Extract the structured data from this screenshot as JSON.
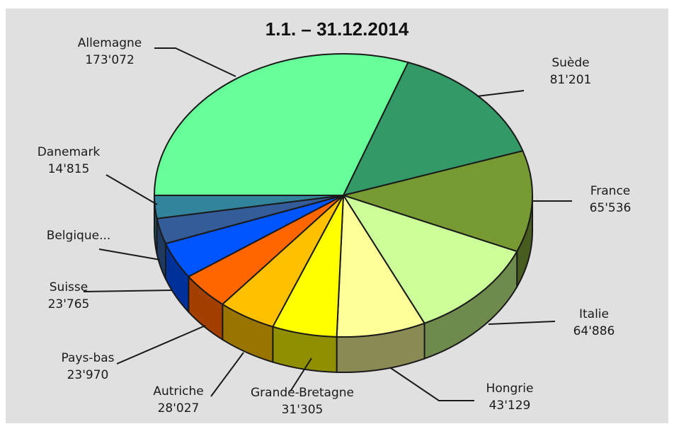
{
  "chart_data": {
    "type": "pie",
    "title": "1.1. – 31.12.2014",
    "slices": [
      {
        "label": "Allemagne",
        "value_label": "173'072",
        "value": 173072,
        "color": "#66ff99",
        "side": "#3f9c5e"
      },
      {
        "label": "Suède",
        "value_label": "81'201",
        "value": 81201,
        "color": "#339966",
        "side": "#1f5c3d"
      },
      {
        "label": "France",
        "value_label": "65'536",
        "value": 65536,
        "color": "#779a33",
        "side": "#475c1f"
      },
      {
        "label": "Italie",
        "value_label": "64'886",
        "value": 64886,
        "color": "#ccff99",
        "side": "#6e8a4d"
      },
      {
        "label": "Hongrie",
        "value_label": "43'129",
        "value": 43129,
        "color": "#ffff99",
        "side": "#8a8a55"
      },
      {
        "label": "Grande-Bretagne",
        "value_label": "31'305",
        "value": 31305,
        "color": "#ffff00",
        "side": "#8f8f00"
      },
      {
        "label": "Autriche",
        "value_label": "28'027",
        "value": 28027,
        "color": "#ffc000",
        "side": "#9a7400"
      },
      {
        "label": "Pays-bas",
        "value_label": "23'970",
        "value": 23970,
        "color": "#ff6600",
        "side": "#a33f00"
      },
      {
        "label": "Suisse",
        "value_label": "23'765",
        "value": 23765,
        "color": "#0055ff",
        "side": "#00309a"
      },
      {
        "label": "Belgique...",
        "value_label": "",
        "value": 16500,
        "color": "#335c99",
        "side": "#1f3a60"
      },
      {
        "label": "Danemark",
        "value_label": "14'815",
        "value": 14815,
        "color": "#31849b",
        "side": "#1d5260"
      }
    ]
  }
}
